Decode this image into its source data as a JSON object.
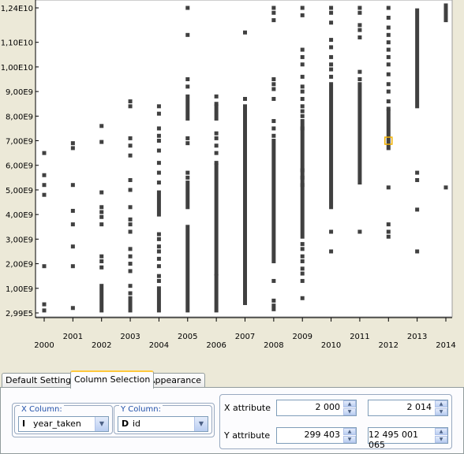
{
  "chart_data": {
    "type": "scatter",
    "title": "",
    "xlabel": "",
    "ylabel": "",
    "xlim": [
      2000,
      2014
    ],
    "ylim": [
      299403,
      12495001065
    ],
    "x_tick_labels": [
      "2000",
      "2001",
      "2002",
      "2003",
      "2004",
      "2005",
      "2006",
      "2007",
      "2008",
      "2009",
      "2010",
      "2011",
      "2012",
      "2013",
      "2014"
    ],
    "y_tick_labels": [
      {
        "value": 299403,
        "label": "2,99E5"
      },
      {
        "value": 1000000000,
        "label": "1,00E9"
      },
      {
        "value": 2000000000,
        "label": "2,00E9"
      },
      {
        "value": 3000000000,
        "label": "3,00E9"
      },
      {
        "value": 4000000000,
        "label": "4,00E9"
      },
      {
        "value": 5000000000,
        "label": "5,00E9"
      },
      {
        "value": 6000000000,
        "label": "6,00E9"
      },
      {
        "value": 7000000000,
        "label": "7,00E9"
      },
      {
        "value": 8000000000,
        "label": "8,00E9"
      },
      {
        "value": 9000000000,
        "label": "9,00E9"
      },
      {
        "value": 10000000000,
        "label": "1,00E10"
      },
      {
        "value": 11000000000,
        "label": "1,10E10"
      },
      {
        "value": 12400000000,
        "label": "1,24E10"
      }
    ],
    "grid": false,
    "points": {
      "2000": {
        "singles": [
          6.5,
          5.6,
          5.2,
          4.8,
          1.9,
          0.35,
          0.1
        ],
        "ranges": []
      },
      "2001": {
        "singles": [
          6.9,
          6.7,
          5.2,
          4.15,
          3.6,
          2.7,
          1.9,
          0.2
        ],
        "ranges": []
      },
      "2002": {
        "singles": [
          7.6,
          6.95,
          4.9,
          4.3,
          4.1,
          3.9,
          3.6,
          2.3,
          2.1,
          1.85
        ],
        "ranges": [
          [
            0.1,
            1.1
          ]
        ]
      },
      "2003": {
        "singles": [
          8.6,
          8.4,
          7.1,
          6.8,
          6.4,
          5.4,
          5.0,
          4.3,
          3.8,
          3.6,
          3.3,
          2.6,
          2.3,
          2.0,
          1.7,
          1.1,
          0.8
        ],
        "ranges": [
          [
            0.1,
            0.6
          ]
        ]
      },
      "2004": {
        "singles": [
          8.4,
          8.1,
          7.5,
          7.2,
          7.0,
          6.6,
          6.1,
          5.7,
          5.3,
          3.2,
          3.0,
          2.7,
          2.5,
          2.2,
          1.9,
          1.5,
          1.3
        ],
        "ranges": [
          [
            4.0,
            4.9
          ],
          [
            0.1,
            1.0
          ]
        ]
      },
      "2005": {
        "singles": [
          12.4,
          11.3,
          9.5,
          9.2,
          7.1,
          6.9,
          5.7,
          5.5
        ],
        "ranges": [
          [
            7.9,
            8.8
          ],
          [
            4.3,
            5.3
          ],
          [
            0.1,
            3.5
          ]
        ]
      },
      "2006": {
        "singles": [
          8.8,
          8.5,
          7.3,
          7.1,
          6.8,
          6.5,
          6.1
        ],
        "ranges": [
          [
            7.9,
            8.4
          ],
          [
            1.6,
            6.0
          ],
          [
            0.1,
            1.5
          ]
        ]
      },
      "2007": {
        "singles": [
          11.4,
          8.7
        ],
        "ranges": [
          [
            6.0,
            8.4
          ],
          [
            0.4,
            5.9
          ]
        ]
      },
      "2008": {
        "singles": [
          12.4,
          12.2,
          11.9,
          9.5,
          9.3,
          9.1,
          8.7,
          7.8,
          7.5,
          7.2,
          1.3,
          0.5,
          0.3,
          0.15
        ],
        "ranges": [
          [
            2.1,
            7.0
          ]
        ]
      },
      "2009": {
        "singles": [
          12.4,
          12.1,
          10.7,
          10.4,
          10.1,
          9.6,
          9.2,
          9.0,
          8.7,
          8.4,
          8.2,
          8.0,
          7.5,
          5.8,
          5.5,
          5.2,
          2.8,
          2.6,
          2.3,
          2.1,
          1.8,
          1.6,
          1.3,
          0.6
        ],
        "ranges": [
          [
            3.1,
            7.8
          ]
        ]
      },
      "2010": {
        "singles": [
          12.4,
          12.2,
          11.8,
          11.1,
          10.8,
          10.4,
          10.1,
          9.9,
          9.6,
          3.3,
          2.5
        ],
        "ranges": [
          [
            4.3,
            9.3
          ]
        ]
      },
      "2011": {
        "singles": [
          12.4,
          12.2,
          11.7,
          11.5,
          11.2,
          9.8,
          9.5,
          3.3
        ],
        "ranges": [
          [
            5.3,
            9.3
          ]
        ]
      },
      "2012": {
        "singles": [
          12.4,
          12.0,
          11.6,
          11.3,
          11.0,
          10.7,
          10.4,
          10.1,
          9.7,
          9.3,
          9.0,
          8.6,
          8.3,
          5.1,
          3.6,
          3.3,
          3.1
        ],
        "ranges": [
          [
            6.7,
            8.2
          ]
        ]
      },
      "2013": {
        "singles": [
          5.7,
          5.4,
          4.2,
          2.5
        ],
        "ranges": [
          [
            8.4,
            12.3
          ]
        ]
      },
      "2014": {
        "singles": [
          5.1
        ],
        "ranges": [
          [
            11.9,
            12.5
          ]
        ]
      }
    },
    "selected_point": {
      "x": 2012,
      "y": 7.0,
      "color": "#f0b000"
    },
    "mark_color": "#404040",
    "plot_background": "#ffffff"
  },
  "tabs": [
    {
      "label": "Default Settings",
      "active": false
    },
    {
      "label": "Column Selection",
      "active": true
    },
    {
      "label": "Appearance",
      "active": false
    }
  ],
  "panel": {
    "x_column": {
      "title": "X Column:",
      "type_icon": "I",
      "value": "year_taken"
    },
    "y_column": {
      "title": "Y Column:",
      "type_icon": "D",
      "value": "id"
    },
    "x_attribute": {
      "label": "X attribute",
      "min": "2 000",
      "max": "2 014"
    },
    "y_attribute": {
      "label": "Y attribute",
      "min": "299 403",
      "max": "12 495 001 065"
    }
  }
}
